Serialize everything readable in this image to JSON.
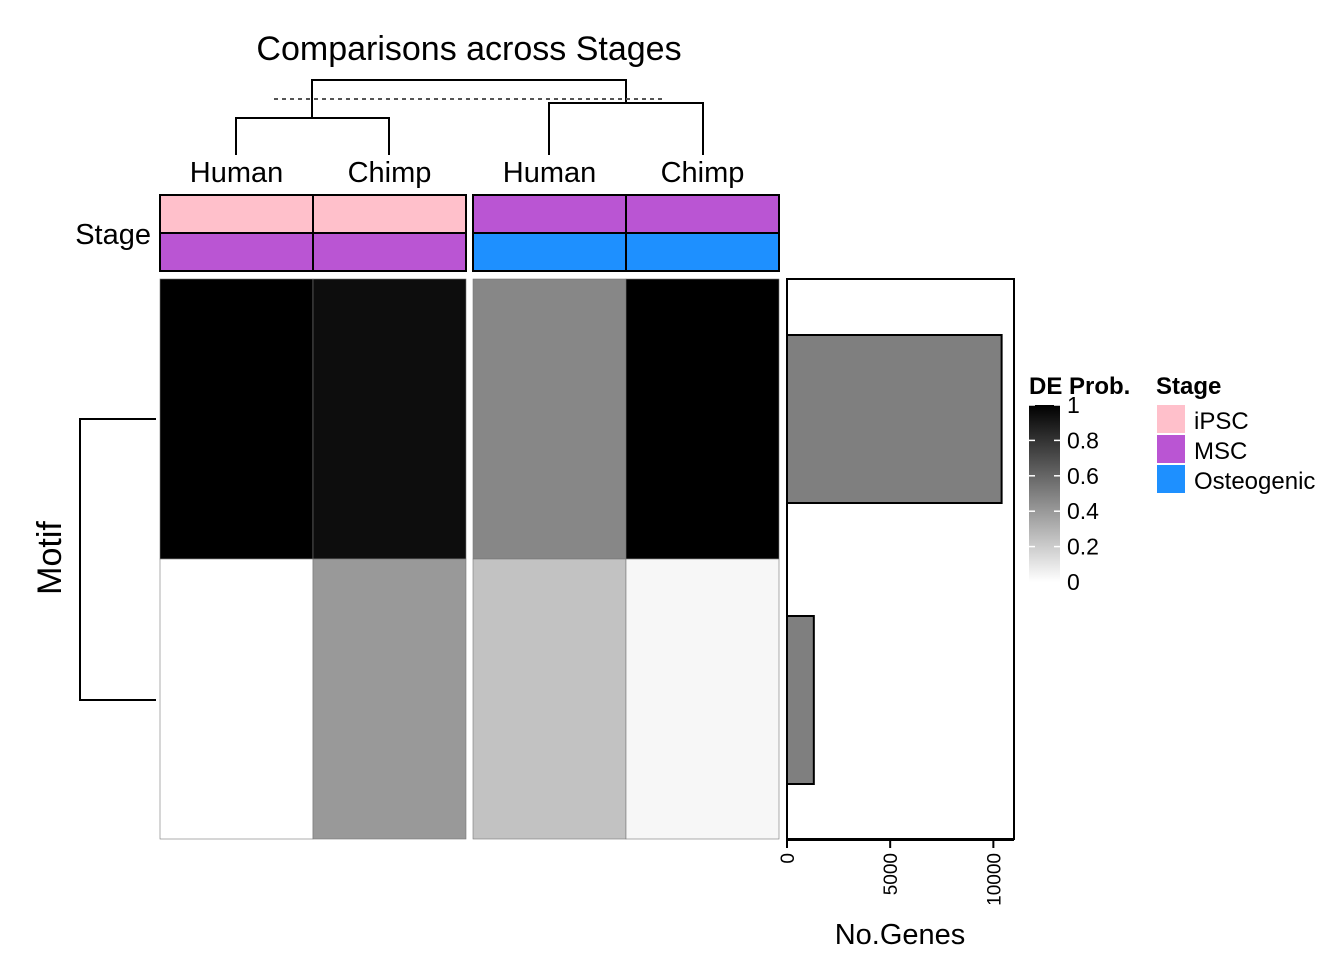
{
  "chart_data": {
    "type": "heatmap",
    "title": "Comparisons across Stages",
    "columns": [
      {
        "label": "Human",
        "stage_top": "iPSC",
        "stage_bottom": "MSC"
      },
      {
        "label": "Chimp",
        "stage_top": "iPSC",
        "stage_bottom": "MSC"
      },
      {
        "label": "Human",
        "stage_top": "MSC",
        "stage_bottom": "Osteogenic"
      },
      {
        "label": "Chimp",
        "stage_top": "MSC",
        "stage_bottom": "Osteogenic"
      }
    ],
    "column_groups": [
      [
        0,
        1
      ],
      [
        2,
        3
      ]
    ],
    "row_axis_label": "Motif",
    "annotation_label": "Stage",
    "values": [
      [
        1.0,
        0.95,
        0.47,
        1.0
      ],
      [
        0.0,
        0.4,
        0.24,
        0.03
      ]
    ],
    "bar": {
      "values": [
        10400,
        1300
      ],
      "xlabel": "No.Genes",
      "ticks": [
        0,
        5000,
        10000
      ],
      "xlim": [
        0,
        11000
      ],
      "color": "#7f7f7f"
    },
    "legend_de": {
      "title": "DE Prob.",
      "ticks": [
        "1",
        "0.8",
        "0.6",
        "0.4",
        "0.2",
        "0"
      ],
      "range": [
        0,
        1
      ]
    },
    "legend_stage": {
      "title": "Stage",
      "items": [
        {
          "label": "iPSC",
          "color": "#ffc0cb"
        },
        {
          "label": "MSC",
          "color": "#ba55d3"
        },
        {
          "label": "Osteogenic",
          "color": "#1e90ff"
        }
      ]
    }
  }
}
